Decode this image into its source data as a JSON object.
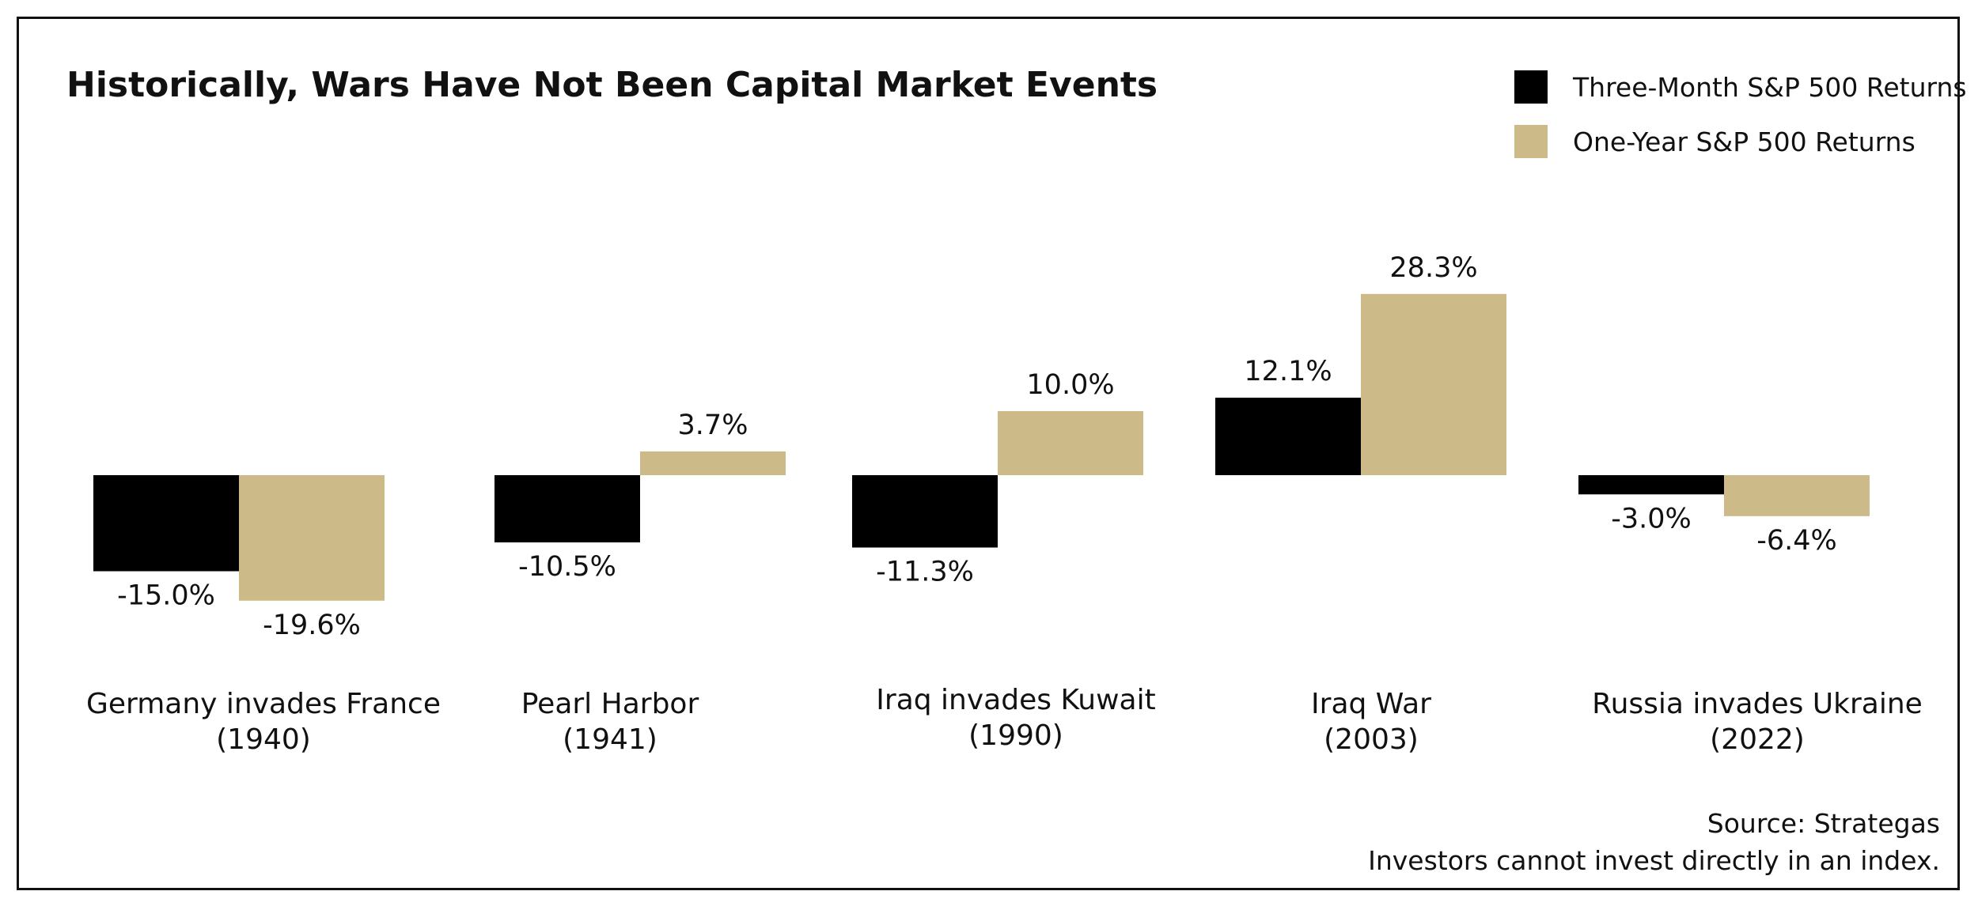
{
  "chart_data": {
    "type": "bar",
    "title": "Historically, Wars Have Not Been Capital Market Events",
    "categories": [
      {
        "name": "Germany invades France",
        "year": "(1940)"
      },
      {
        "name": "Pearl Harbor",
        "year": "(1941)"
      },
      {
        "name": "Iraq invades Kuwait",
        "year": "(1990)"
      },
      {
        "name": "Iraq War",
        "year": "(2003)"
      },
      {
        "name": "Russia invades Ukraine",
        "year": "(2022)"
      }
    ],
    "series": [
      {
        "name": "Three-Month S&P 500 Returns",
        "color": "#000000",
        "values": [
          -15.0,
          -10.5,
          -11.3,
          12.1,
          -3.0
        ],
        "labels": [
          "-15.0%",
          "-10.5%",
          "-11.3%",
          "12.1%",
          "-3.0%"
        ]
      },
      {
        "name": "One-Year S&P 500 Returns",
        "color": "#ccbb88",
        "values": [
          -19.6,
          3.7,
          10.0,
          28.3,
          -6.4
        ],
        "labels": [
          "-19.6%",
          "3.7%",
          "10.0%",
          "28.3%",
          "-6.4%"
        ]
      }
    ],
    "xlabel": "",
    "ylabel": "",
    "ylim": [
      -20,
      30
    ],
    "grid": false,
    "legend": "top-right"
  },
  "footer": {
    "source": "Source: Strategas",
    "disclaimer": "Investors cannot invest directly in an index."
  }
}
